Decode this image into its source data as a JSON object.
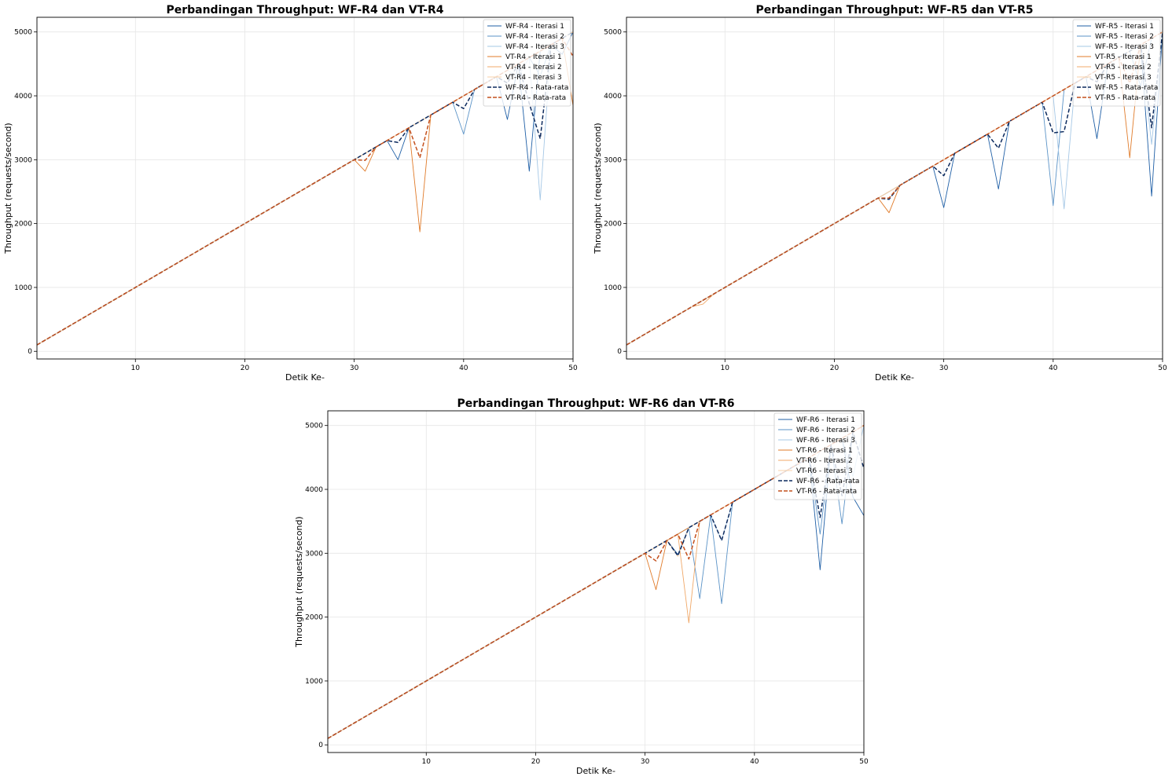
{
  "chart_data": [
    {
      "type": "line",
      "title": "Perbandingan Throughput: WF-R4 dan VT-R4",
      "xlabel": "Detik Ke-",
      "ylabel": "Throughput (requests/second)",
      "xlim": [
        1,
        50
      ],
      "ylim": [
        -120,
        5230
      ],
      "xticks": [
        10,
        20,
        30,
        40,
        50
      ],
      "yticks": [
        0,
        1000,
        2000,
        3000,
        4000,
        5000
      ],
      "grid": true,
      "legend": "top-right",
      "series": [
        {
          "name": "WF-R4 - Iterasi 1",
          "color": "#1f5fa6",
          "style": "solid",
          "dips": [
            [
              34,
              3000
            ],
            [
              44,
              3630
            ],
            [
              46,
              2820
            ],
            [
              49,
              4650
            ]
          ]
        },
        {
          "name": "WF-R4 - Iterasi 2",
          "color": "#5b93c7",
          "style": "solid",
          "dips": [
            [
              40,
              3400
            ],
            [
              47,
              4310
            ]
          ]
        },
        {
          "name": "WF-R4 - Iterasi 3",
          "color": "#a6c8e6",
          "style": "solid",
          "dips": [
            [
              45,
              4300
            ],
            [
              47,
              2370
            ]
          ]
        },
        {
          "name": "VT-R4 - Iterasi 1",
          "color": "#e07b2a",
          "style": "solid",
          "dips": [
            [
              31,
              2820
            ],
            [
              36,
              1870
            ],
            [
              50,
              3850
            ]
          ]
        },
        {
          "name": "VT-R4 - Iterasi 2",
          "color": "#f0a868",
          "style": "solid",
          "dips": []
        },
        {
          "name": "VT-R4 - Iterasi 3",
          "color": "#f8d2a8",
          "style": "solid",
          "dips": []
        },
        {
          "name": "WF-R4 - Rata-rata",
          "color": "#0c2a5e",
          "style": "dashed",
          "dips": [
            [
              34,
              3270
            ],
            [
              40,
              3800
            ],
            [
              44,
              4200
            ],
            [
              46,
              3880
            ],
            [
              47,
              3330
            ]
          ]
        },
        {
          "name": "VT-R4 - Rata-rata",
          "color": "#c4501d",
          "style": "dashed",
          "dips": [
            [
              31,
              2990
            ],
            [
              36,
              3030
            ],
            [
              50,
              4620
            ]
          ]
        }
      ]
    },
    {
      "type": "line",
      "title": "Perbandingan Throughput: WF-R5 dan VT-R5",
      "xlabel": "Detik Ke-",
      "ylabel": "Throughput (requests/second)",
      "xlim": [
        1,
        50
      ],
      "ylim": [
        -120,
        5230
      ],
      "xticks": [
        10,
        20,
        30,
        40,
        50
      ],
      "yticks": [
        0,
        1000,
        2000,
        3000,
        4000,
        5000
      ],
      "grid": true,
      "legend": "top-right",
      "series": [
        {
          "name": "WF-R5 - Iterasi 1",
          "color": "#1f5fa6",
          "style": "solid",
          "dips": [
            [
              30,
              2250
            ],
            [
              35,
              2540
            ],
            [
              44,
              3330
            ],
            [
              49,
              2430
            ]
          ]
        },
        {
          "name": "WF-R5 - Iterasi 2",
          "color": "#5b93c7",
          "style": "solid",
          "dips": [
            [
              40,
              2280
            ],
            [
              48,
              4150
            ]
          ]
        },
        {
          "name": "WF-R5 - Iterasi 3",
          "color": "#a6c8e6",
          "style": "solid",
          "dips": [
            [
              41,
              2230
            ],
            [
              49,
              3240
            ]
          ]
        },
        {
          "name": "VT-R5 - Iterasi 1",
          "color": "#e07b2a",
          "style": "solid",
          "dips": [
            [
              25,
              2170
            ],
            [
              47,
              3030
            ]
          ]
        },
        {
          "name": "VT-R5 - Iterasi 2",
          "color": "#f0a868",
          "style": "solid",
          "dips": [
            [
              8,
              740
            ]
          ]
        },
        {
          "name": "VT-R5 - Iterasi 3",
          "color": "#f8d2a8",
          "style": "solid",
          "dips": []
        },
        {
          "name": "WF-R5 - Rata-rata",
          "color": "#0c2a5e",
          "style": "dashed",
          "dips": [
            [
              25,
              2380
            ],
            [
              30,
              2750
            ],
            [
              35,
              3180
            ],
            [
              40,
              3420
            ],
            [
              41,
              3440
            ],
            [
              44,
              4220
            ],
            [
              49,
              3500
            ]
          ]
        },
        {
          "name": "VT-R5 - Rata-rata",
          "color": "#c4501d",
          "style": "dashed",
          "dips": [
            [
              25,
              2400
            ],
            [
              47,
              4200
            ]
          ]
        }
      ]
    },
    {
      "type": "line",
      "title": "Perbandingan Throughput: WF-R6 dan VT-R6",
      "xlabel": "Detik Ke-",
      "ylabel": "Throughput (requests/second)",
      "xlim": [
        1,
        50
      ],
      "ylim": [
        -120,
        5230
      ],
      "xticks": [
        10,
        20,
        30,
        40,
        50
      ],
      "yticks": [
        0,
        1000,
        2000,
        3000,
        4000,
        5000
      ],
      "grid": true,
      "legend": "top-right",
      "series": [
        {
          "name": "WF-R6 - Iterasi 1",
          "color": "#1f5fa6",
          "style": "solid",
          "dips": [
            [
              33,
              2980
            ],
            [
              46,
              2740
            ],
            [
              49,
              3880
            ],
            [
              50,
              3590
            ]
          ]
        },
        {
          "name": "WF-R6 - Iterasi 2",
          "color": "#5b93c7",
          "style": "solid",
          "dips": [
            [
              35,
              2290
            ],
            [
              37,
              2210
            ],
            [
              46,
              3300
            ],
            [
              48,
              3460
            ]
          ]
        },
        {
          "name": "WF-R6 - Iterasi 3",
          "color": "#a6c8e6",
          "style": "solid",
          "dips": [
            [
              37,
              3200
            ],
            [
              45,
              4200
            ],
            [
              49,
              4200
            ]
          ]
        },
        {
          "name": "VT-R6 - Iterasi 1",
          "color": "#e07b2a",
          "style": "solid",
          "dips": [
            [
              31,
              2430
            ]
          ]
        },
        {
          "name": "VT-R6 - Iterasi 2",
          "color": "#f0a868",
          "style": "solid",
          "dips": [
            [
              34,
              1910
            ]
          ]
        },
        {
          "name": "VT-R6 - Iterasi 3",
          "color": "#f8d2a8",
          "style": "solid",
          "dips": [
            [
              33,
              2950
            ]
          ]
        },
        {
          "name": "WF-R6 - Rata-rata",
          "color": "#0c2a5e",
          "style": "dashed",
          "dips": [
            [
              33,
              2960
            ],
            [
              35,
              3500
            ],
            [
              37,
              3200
            ],
            [
              46,
              3560
            ],
            [
              48,
              3900
            ],
            [
              50,
              4330
            ]
          ]
        },
        {
          "name": "VT-R6 - Rata-rata",
          "color": "#c4501d",
          "style": "dashed",
          "dips": [
            [
              31,
              2880
            ],
            [
              34,
              2910
            ]
          ]
        }
      ]
    }
  ]
}
